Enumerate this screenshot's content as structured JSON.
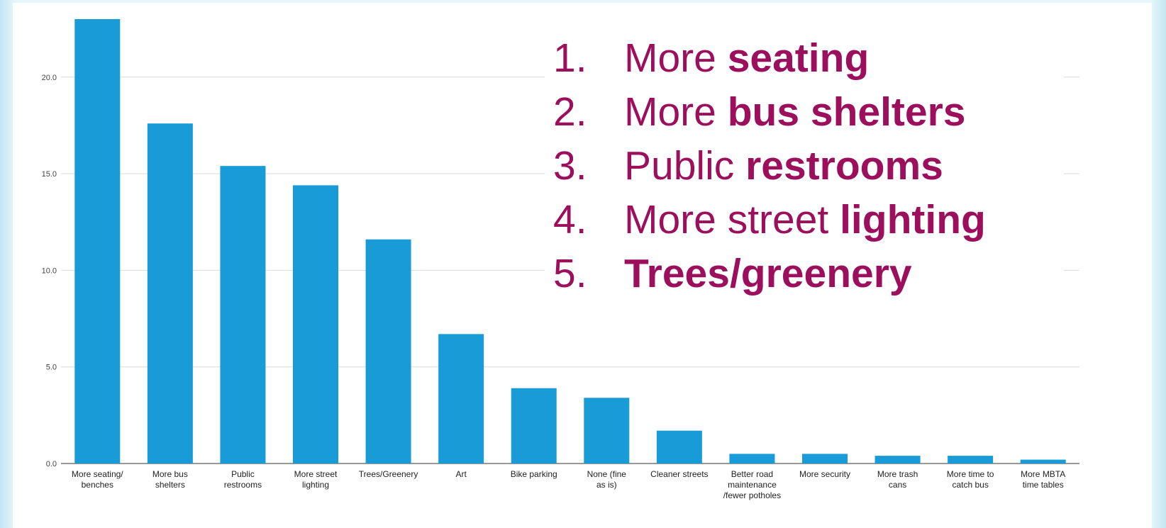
{
  "ranking": [
    {
      "number": "1.",
      "prefix": "More ",
      "bold": "seating"
    },
    {
      "number": "2.",
      "prefix": "More ",
      "bold": "bus shelters"
    },
    {
      "number": "3.",
      "prefix": "Public ",
      "bold": "restrooms"
    },
    {
      "number": "4.",
      "prefix": "More street ",
      "bold": "lighting"
    },
    {
      "number": "5.",
      "prefix": "",
      "bold": "Trees/greenery"
    }
  ],
  "colors": {
    "bar": "#189bd7",
    "ranking_text": "#9c0f5c",
    "grid": "#d9d9d9",
    "background": "#e7f6fb"
  },
  "chart_data": {
    "type": "bar",
    "title": "",
    "xlabel": "",
    "ylabel": "",
    "ylim": [
      0,
      23
    ],
    "yticks": [
      0,
      5,
      10,
      15,
      20
    ],
    "ytick_labels": [
      "0.0",
      "5.0",
      "10.0",
      "15.0",
      "20.0"
    ],
    "grid": true,
    "categories": [
      [
        "More seating/",
        "benches"
      ],
      [
        "More bus",
        "shelters"
      ],
      [
        "Public",
        "restrooms"
      ],
      [
        "More street",
        "lighting"
      ],
      [
        "Trees/Greenery"
      ],
      [
        "Art"
      ],
      [
        "Bike parking"
      ],
      [
        "None (fine",
        "as is)"
      ],
      [
        "Cleaner streets"
      ],
      [
        "Better road",
        "maintenance",
        "/fewer potholes"
      ],
      [
        "More security"
      ],
      [
        "More trash",
        "cans"
      ],
      [
        "More time to",
        "catch bus"
      ],
      [
        "More MBTA",
        "time tables"
      ]
    ],
    "values": [
      23.0,
      17.6,
      15.4,
      14.4,
      11.6,
      6.7,
      3.9,
      3.4,
      1.7,
      0.5,
      0.5,
      0.4,
      0.4,
      0.2
    ]
  }
}
